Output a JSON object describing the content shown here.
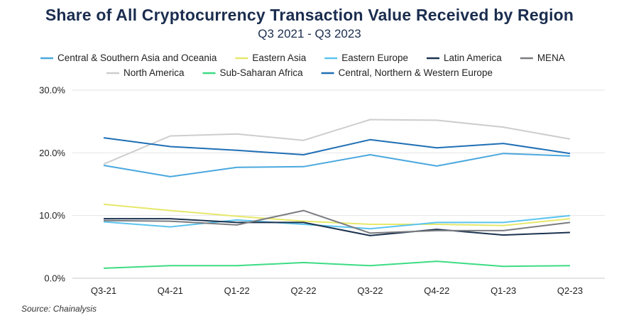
{
  "chart_data": {
    "type": "line",
    "title": "Share of All Cryptocurrency Transaction Value Received by Region",
    "subtitle": "Q3 2021 - Q3 2023",
    "categories": [
      "Q3-21",
      "Q4-21",
      "Q1-22",
      "Q2-22",
      "Q3-22",
      "Q4-22",
      "Q1-23",
      "Q2-23"
    ],
    "ylim": [
      0,
      30
    ],
    "yticks": [
      0,
      10,
      20,
      30
    ],
    "ytick_labels": [
      "0.0%",
      "10.0%",
      "20.0%",
      "30.0%"
    ],
    "grid": true,
    "legend_position": "top",
    "series": [
      {
        "name": "Central & Southern Asia and Oceania",
        "color": "#4aa8de",
        "values": [
          18.0,
          16.2,
          17.7,
          17.8,
          19.7,
          17.9,
          19.9,
          19.5
        ]
      },
      {
        "name": "Eastern Asia",
        "color": "#e6e86a",
        "values": [
          11.8,
          10.8,
          9.9,
          9.1,
          8.6,
          8.6,
          8.4,
          9.5
        ]
      },
      {
        "name": "Eastern Europe",
        "color": "#5bc4ee",
        "values": [
          9.0,
          8.2,
          9.3,
          8.6,
          7.9,
          8.9,
          8.9,
          10.0
        ]
      },
      {
        "name": "Latin America",
        "color": "#1c3350",
        "values": [
          9.5,
          9.5,
          8.9,
          8.9,
          6.8,
          7.8,
          6.9,
          7.3
        ]
      },
      {
        "name": "MENA",
        "color": "#7a7c80",
        "values": [
          9.2,
          9.1,
          8.5,
          10.8,
          7.2,
          7.6,
          7.6,
          8.9
        ]
      },
      {
        "name": "North America",
        "color": "#cdcdcd",
        "values": [
          18.2,
          22.7,
          23.0,
          22.0,
          25.3,
          25.2,
          24.1,
          22.2
        ]
      },
      {
        "name": "Sub-Saharan Africa",
        "color": "#3ddc84",
        "values": [
          1.6,
          2.0,
          2.0,
          2.5,
          2.0,
          2.7,
          1.9,
          2.0
        ]
      },
      {
        "name": "Central, Northern & Western Europe",
        "color": "#1f6fb5",
        "values": [
          22.4,
          21.0,
          20.4,
          19.7,
          22.1,
          20.8,
          21.5,
          19.9
        ]
      }
    ]
  },
  "source": "Source: Chainalysis"
}
